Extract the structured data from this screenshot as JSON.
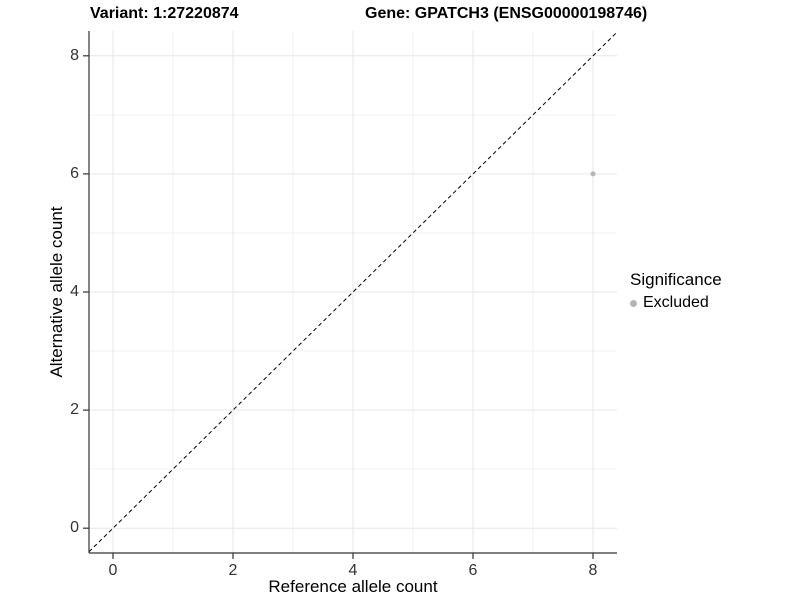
{
  "chart_data": {
    "type": "scatter",
    "title_left": "Variant: 1:27220874",
    "title_right": "Gene: GPATCH3 (ENSG00000198746)",
    "xlabel": "Reference allele count",
    "ylabel": "Alternative allele count",
    "xlim": [
      -0.4,
      8.4
    ],
    "ylim": [
      -0.42,
      8.42
    ],
    "xticks": [
      0,
      2,
      4,
      6,
      8
    ],
    "yticks": [
      0,
      2,
      4,
      6,
      8
    ],
    "xminor": [
      1,
      3,
      5,
      7
    ],
    "yminor": [
      1,
      3,
      5,
      7
    ],
    "grid": true,
    "points": [
      {
        "x": 8,
        "y": 6,
        "significance": "Excluded"
      }
    ],
    "identity_line": {
      "style": "dashed",
      "slope": 1,
      "intercept": 0
    },
    "legend": {
      "title": "Significance",
      "position": "right",
      "entries": [
        {
          "label": "Excluded",
          "color": "#b5b5b5"
        }
      ]
    },
    "colors": {
      "point": "#b5b5b5",
      "grid_major": "#e7e7e7",
      "grid_minor": "#f2f2f2",
      "axis": "#333333",
      "dashed_line": "#000000",
      "tick_text": "#333333"
    }
  }
}
